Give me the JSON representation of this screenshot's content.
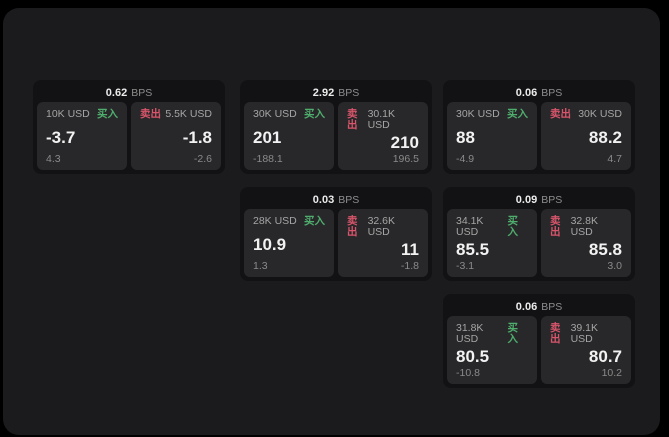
{
  "labels": {
    "bps_unit": "BPS",
    "buy": "买入",
    "sell": "卖出"
  },
  "colors": {
    "buy_green": "#4fae6d",
    "sell_red": "#d9556b",
    "panel_bg": "#1b1b1d",
    "card_bg": "#121214",
    "tile_bg": "#28282a"
  },
  "cards": [
    {
      "bps": "0.62",
      "col": 1,
      "row": 1,
      "buy": {
        "size": "10K USD",
        "value": "-3.7",
        "change": "4.3"
      },
      "sell": {
        "size": "5.5K USD",
        "value": "-1.8",
        "change": "-2.6"
      }
    },
    {
      "bps": "2.92",
      "col": 2,
      "row": 1,
      "buy": {
        "size": "30K USD",
        "value": "201",
        "change": "-188.1"
      },
      "sell": {
        "size": "30.1K USD",
        "value": "210",
        "change": "196.5"
      }
    },
    {
      "bps": "0.06",
      "col": 3,
      "row": 1,
      "buy": {
        "size": "30K USD",
        "value": "88",
        "change": "-4.9"
      },
      "sell": {
        "size": "30K USD",
        "value": "88.2",
        "change": "4.7"
      }
    },
    {
      "bps": "0.03",
      "col": 2,
      "row": 2,
      "buy": {
        "size": "28K USD",
        "value": "10.9",
        "change": "1.3"
      },
      "sell": {
        "size": "32.6K USD",
        "value": "11",
        "change": "-1.8"
      }
    },
    {
      "bps": "0.09",
      "col": 3,
      "row": 2,
      "buy": {
        "size": "34.1K USD",
        "value": "85.5",
        "change": "-3.1"
      },
      "sell": {
        "size": "32.8K USD",
        "value": "85.8",
        "change": "3.0"
      }
    },
    {
      "bps": "0.06",
      "col": 3,
      "row": 3,
      "buy": {
        "size": "31.8K USD",
        "value": "80.5",
        "change": "-10.8"
      },
      "sell": {
        "size": "39.1K USD",
        "value": "80.7",
        "change": "10.2"
      }
    }
  ]
}
